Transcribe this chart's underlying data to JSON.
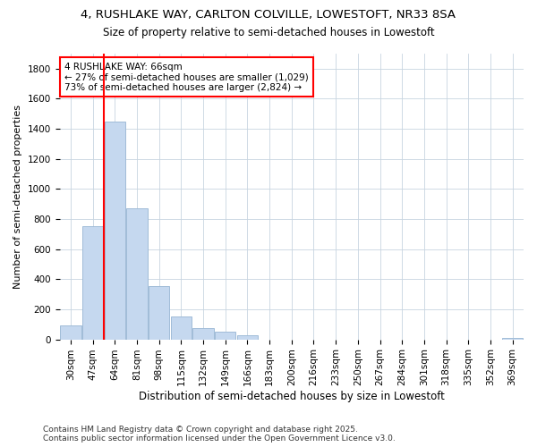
{
  "title_line1": "4, RUSHLAKE WAY, CARLTON COLVILLE, LOWESTOFT, NR33 8SA",
  "title_line2": "Size of property relative to semi-detached houses in Lowestoft",
  "xlabel": "Distribution of semi-detached houses by size in Lowestoft",
  "ylabel": "Number of semi-detached properties",
  "categories": [
    "30sqm",
    "47sqm",
    "64sqm",
    "81sqm",
    "98sqm",
    "115sqm",
    "132sqm",
    "149sqm",
    "166sqm",
    "183sqm",
    "200sqm",
    "216sqm",
    "233sqm",
    "250sqm",
    "267sqm",
    "284sqm",
    "301sqm",
    "318sqm",
    "335sqm",
    "352sqm",
    "369sqm"
  ],
  "values": [
    90,
    750,
    1450,
    870,
    355,
    150,
    75,
    50,
    30,
    0,
    0,
    0,
    0,
    0,
    0,
    0,
    0,
    0,
    0,
    0,
    10
  ],
  "bar_color": "#c5d8ef",
  "bar_edge_color": "#a0bcd8",
  "grid_color": "#c8d4e0",
  "vline_color": "red",
  "vline_x_index": 2,
  "annotation_text": "4 RUSHLAKE WAY: 66sqm\n← 27% of semi-detached houses are smaller (1,029)\n73% of semi-detached houses are larger (2,824) →",
  "annotation_box_color": "white",
  "annotation_box_edge": "red",
  "ylim": [
    0,
    1900
  ],
  "yticks": [
    0,
    200,
    400,
    600,
    800,
    1000,
    1200,
    1400,
    1600,
    1800
  ],
  "footnote": "Contains HM Land Registry data © Crown copyright and database right 2025.\nContains public sector information licensed under the Open Government Licence v3.0.",
  "background_color": "#ffffff",
  "plot_background_color": "#ffffff",
  "title_fontsize": 9.5,
  "subtitle_fontsize": 8.5,
  "tick_fontsize": 7.5,
  "ylabel_fontsize": 8,
  "xlabel_fontsize": 8.5,
  "footnote_fontsize": 6.5
}
